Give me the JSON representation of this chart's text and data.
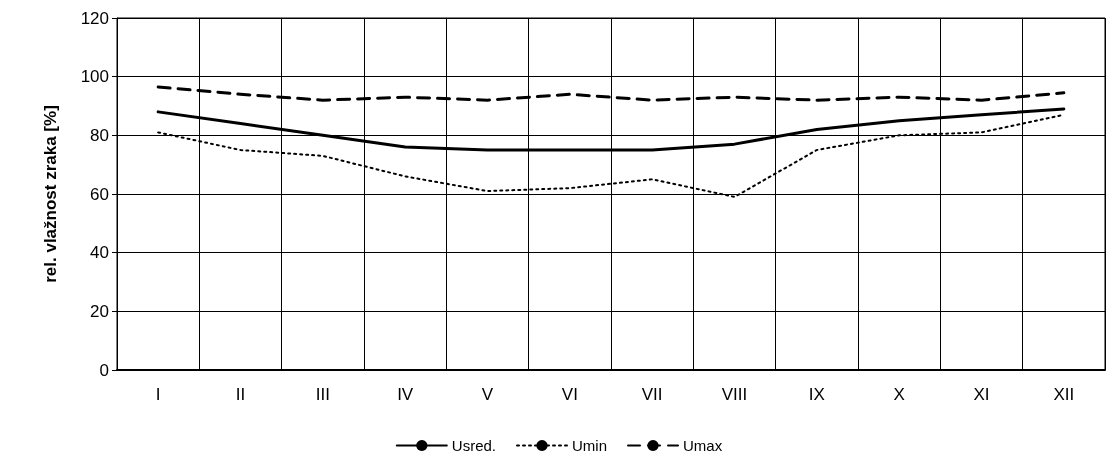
{
  "chart_data": {
    "type": "line",
    "ylabel": "rel. vlažnost zraka [%]",
    "categories": [
      "I",
      "II",
      "III",
      "IV",
      "V",
      "VI",
      "VII",
      "VIII",
      "IX",
      "X",
      "XI",
      "XII"
    ],
    "series": [
      {
        "name": "Usred.",
        "color": "#000000",
        "line_style": "solid",
        "values": [
          88,
          84,
          80,
          76,
          75,
          75,
          75,
          77,
          82,
          85,
          87,
          89
        ]
      },
      {
        "name": "Umin",
        "color": "#000000",
        "line_style": "dotted",
        "values": [
          81,
          75,
          73,
          66,
          61,
          62,
          65,
          59,
          75,
          80,
          81,
          87
        ]
      },
      {
        "name": "Umax",
        "color": "#000000",
        "line_style": "dashed",
        "values": [
          96.5,
          94,
          92,
          93,
          92,
          94,
          92,
          93,
          92,
          93,
          92,
          94.5
        ]
      }
    ],
    "ylim": [
      0,
      120
    ],
    "yticks": [
      0,
      20,
      40,
      60,
      80,
      100,
      120
    ],
    "grid": true,
    "legend": "bottom",
    "marker": "none"
  }
}
